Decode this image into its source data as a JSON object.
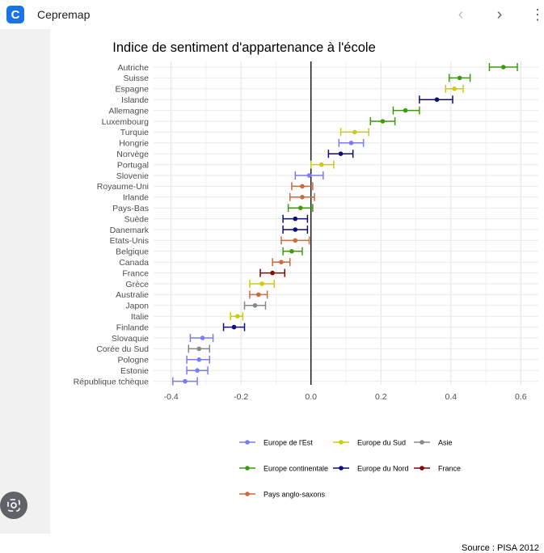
{
  "app": {
    "title": "Cepremap",
    "icon_letter": "C"
  },
  "nav": {
    "back_icon": "chevron-left-icon",
    "forward_icon": "chevron-right-icon",
    "menu_icon": "more-vert-icon"
  },
  "colors": {
    "Europe de l'Est": "#7b7bf2",
    "Europe du Sud": "#cccc00",
    "Asie": "#888888",
    "Europe continentale": "#3c9a0f",
    "Europe du Nord": "#0c0c7a",
    "France": "#8b0000",
    "Pays anglo-saxons": "#cd6a3c"
  },
  "chart_data": {
    "type": "errorbar",
    "title": "Indice de sentiment d'appartenance à l'école",
    "xlim": [
      -0.45,
      0.65
    ],
    "xticks": [
      -0.4,
      -0.2,
      0.0,
      0.2,
      0.4,
      0.6
    ],
    "xtick_labels": [
      "-0.4",
      "-0.2",
      "0.0",
      "0.2",
      "0.4",
      "0.6"
    ],
    "grid": true,
    "legend_position": "bottom",
    "legend": [
      "Europe de l'Est",
      "Europe du Sud",
      "Asie",
      "Europe continentale",
      "Europe du Nord",
      "France",
      "Pays anglo-saxons"
    ],
    "points": [
      {
        "country": "Autriche",
        "value": 0.55,
        "low": 0.51,
        "high": 0.59,
        "group": "Europe continentale"
      },
      {
        "country": "Suisse",
        "value": 0.425,
        "low": 0.395,
        "high": 0.455,
        "group": "Europe continentale"
      },
      {
        "country": "Espagne",
        "value": 0.41,
        "low": 0.385,
        "high": 0.435,
        "group": "Europe du Sud"
      },
      {
        "country": "Islande",
        "value": 0.36,
        "low": 0.31,
        "high": 0.405,
        "group": "Europe du Nord"
      },
      {
        "country": "Allemagne",
        "value": 0.27,
        "low": 0.235,
        "high": 0.31,
        "group": "Europe continentale"
      },
      {
        "country": "Luxembourg",
        "value": 0.205,
        "low": 0.17,
        "high": 0.24,
        "group": "Europe continentale"
      },
      {
        "country": "Turquie",
        "value": 0.125,
        "low": 0.085,
        "high": 0.165,
        "group": "Europe du Sud"
      },
      {
        "country": "Hongrie",
        "value": 0.115,
        "low": 0.08,
        "high": 0.15,
        "group": "Europe de l'Est"
      },
      {
        "country": "Norvège",
        "value": 0.085,
        "low": 0.05,
        "high": 0.12,
        "group": "Europe du Nord"
      },
      {
        "country": "Portugal",
        "value": 0.03,
        "low": 0.0,
        "high": 0.065,
        "group": "Europe du Sud"
      },
      {
        "country": "Slovenie",
        "value": -0.005,
        "low": -0.045,
        "high": 0.035,
        "group": "Europe de l'Est"
      },
      {
        "country": "Royaume-Uni",
        "value": -0.025,
        "low": -0.055,
        "high": 0.005,
        "group": "Pays anglo-saxons"
      },
      {
        "country": "Irlande",
        "value": -0.025,
        "low": -0.06,
        "high": 0.01,
        "group": "Pays anglo-saxons"
      },
      {
        "country": "Pays-Bas",
        "value": -0.03,
        "low": -0.065,
        "high": 0.005,
        "group": "Europe continentale"
      },
      {
        "country": "Suède",
        "value": -0.045,
        "low": -0.08,
        "high": -0.01,
        "group": "Europe du Nord"
      },
      {
        "country": "Danemark",
        "value": -0.045,
        "low": -0.08,
        "high": -0.01,
        "group": "Europe du Nord"
      },
      {
        "country": "Etats-Unis",
        "value": -0.045,
        "low": -0.085,
        "high": -0.005,
        "group": "Pays anglo-saxons"
      },
      {
        "country": "Belgique",
        "value": -0.055,
        "low": -0.08,
        "high": -0.025,
        "group": "Europe continentale"
      },
      {
        "country": "Canada",
        "value": -0.085,
        "low": -0.11,
        "high": -0.06,
        "group": "Pays anglo-saxons"
      },
      {
        "country": "France",
        "value": -0.11,
        "low": -0.145,
        "high": -0.075,
        "group": "France"
      },
      {
        "country": "Grèce",
        "value": -0.14,
        "low": -0.175,
        "high": -0.105,
        "group": "Europe du Sud"
      },
      {
        "country": "Australie",
        "value": -0.15,
        "low": -0.175,
        "high": -0.125,
        "group": "Pays anglo-saxons"
      },
      {
        "country": "Japon",
        "value": -0.16,
        "low": -0.19,
        "high": -0.13,
        "group": "Asie"
      },
      {
        "country": "Italie",
        "value": -0.21,
        "low": -0.23,
        "high": -0.195,
        "group": "Europe du Sud"
      },
      {
        "country": "Finlande",
        "value": -0.22,
        "low": -0.25,
        "high": -0.19,
        "group": "Europe du Nord"
      },
      {
        "country": "Slovaquie",
        "value": -0.31,
        "low": -0.345,
        "high": -0.28,
        "group": "Europe de l'Est"
      },
      {
        "country": "Corée du Sud",
        "value": -0.32,
        "low": -0.35,
        "high": -0.29,
        "group": "Asie"
      },
      {
        "country": "Pologne",
        "value": -0.32,
        "low": -0.355,
        "high": -0.29,
        "group": "Europe de l'Est"
      },
      {
        "country": "Estonie",
        "value": -0.325,
        "low": -0.355,
        "high": -0.295,
        "group": "Europe de l'Est"
      },
      {
        "country": "République tchèque",
        "value": -0.36,
        "low": -0.395,
        "high": -0.325,
        "group": "Europe de l'Est"
      }
    ]
  },
  "source": "Source : PISA 2012"
}
